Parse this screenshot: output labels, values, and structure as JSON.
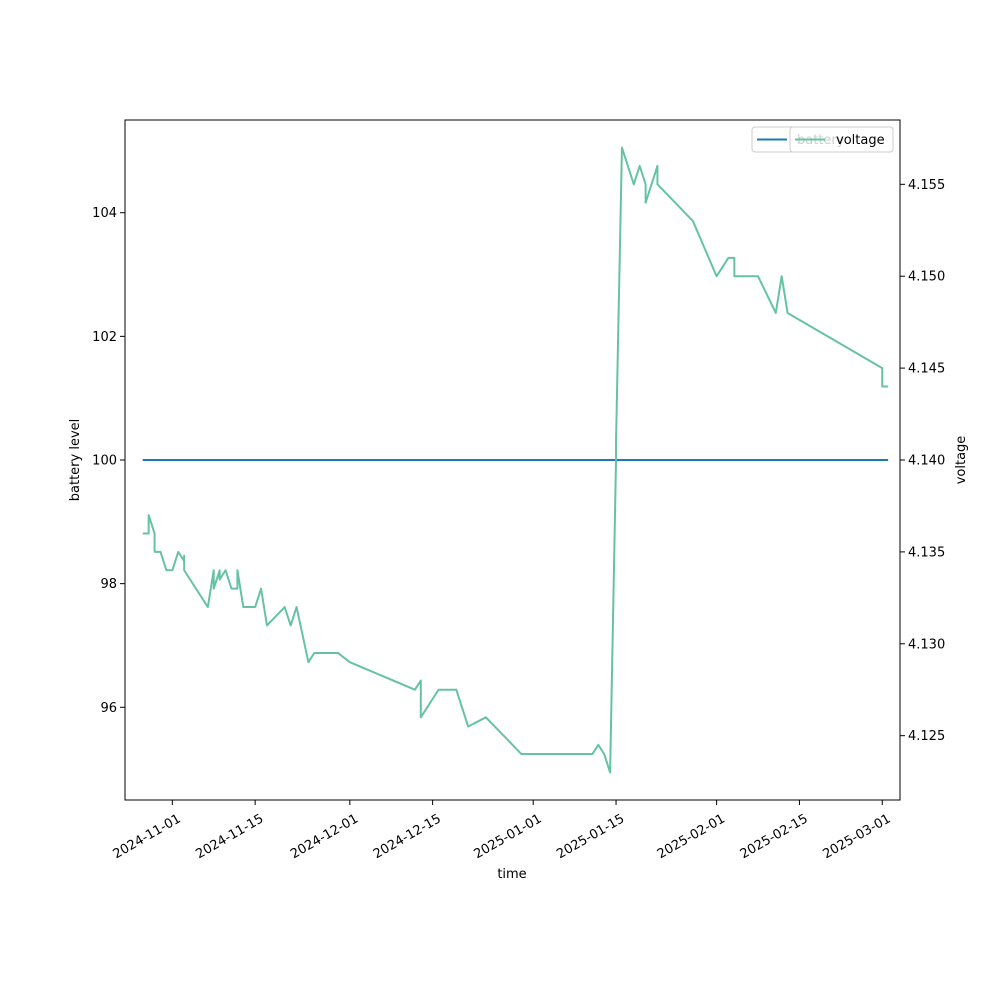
{
  "chart_data": {
    "type": "line",
    "xlabel": "time",
    "ylabel_left": "battery level",
    "ylabel_right": "voltage",
    "xlim": [
      "2024-10-24",
      "2025-03-04"
    ],
    "ylim_left": [
      94.5,
      105.5
    ],
    "ylim_right": [
      4.1215,
      4.1585
    ],
    "x_ticks": [
      "2024-11-01",
      "2024-11-15",
      "2024-12-01",
      "2024-12-15",
      "2025-01-01",
      "2025-01-15",
      "2025-02-01",
      "2025-02-15",
      "2025-03-01"
    ],
    "y_ticks_left": [
      96,
      98,
      100,
      102,
      104
    ],
    "y_ticks_right": [
      4.125,
      4.13,
      4.135,
      4.14,
      4.145,
      4.15,
      4.155
    ],
    "legend_left": {
      "label": "battery",
      "color": "#1f77b4",
      "placement": "upper right"
    },
    "legend_right": {
      "label": "voltage",
      "color": "#66c2a5",
      "placement": "upper right"
    },
    "series": [
      {
        "name": "battery",
        "axis": "left",
        "color": "#1f77b4",
        "points": [
          [
            "2024-10-27",
            100
          ],
          [
            "2025-03-02",
            100
          ]
        ]
      },
      {
        "name": "voltage",
        "axis": "right",
        "color": "#66c2a5",
        "points": [
          [
            "2024-10-27",
            4.136
          ],
          [
            "2024-10-28",
            4.136
          ],
          [
            "2024-10-28",
            4.137
          ],
          [
            "2024-10-29",
            4.136
          ],
          [
            "2024-10-29",
            4.135
          ],
          [
            "2024-10-30",
            4.135
          ],
          [
            "2024-10-31",
            4.134
          ],
          [
            "2024-11-01",
            4.134
          ],
          [
            "2024-11-02",
            4.135
          ],
          [
            "2024-11-03",
            4.1345
          ],
          [
            "2024-11-03",
            4.1348
          ],
          [
            "2024-11-03",
            4.134
          ],
          [
            "2024-11-07",
            4.132
          ],
          [
            "2024-11-08",
            4.134
          ],
          [
            "2024-11-08",
            4.133
          ],
          [
            "2024-11-09",
            4.134
          ],
          [
            "2024-11-09",
            4.1335
          ],
          [
            "2024-11-10",
            4.134
          ],
          [
            "2024-11-11",
            4.133
          ],
          [
            "2024-11-12",
            4.133
          ],
          [
            "2024-11-12",
            4.134
          ],
          [
            "2024-11-13",
            4.132
          ],
          [
            "2024-11-14",
            4.132
          ],
          [
            "2024-11-15",
            4.132
          ],
          [
            "2024-11-16",
            4.133
          ],
          [
            "2024-11-17",
            4.131
          ],
          [
            "2024-11-20",
            4.132
          ],
          [
            "2024-11-21",
            4.131
          ],
          [
            "2024-11-22",
            4.132
          ],
          [
            "2024-11-23",
            4.1305
          ],
          [
            "2024-11-24",
            4.129
          ],
          [
            "2024-11-25",
            4.1295
          ],
          [
            "2024-11-29",
            4.1295
          ],
          [
            "2024-12-01",
            4.129
          ],
          [
            "2024-12-12",
            4.1275
          ],
          [
            "2024-12-13",
            4.128
          ],
          [
            "2024-12-13",
            4.126
          ],
          [
            "2024-12-16",
            4.1275
          ],
          [
            "2024-12-19",
            4.1275
          ],
          [
            "2024-12-21",
            4.1255
          ],
          [
            "2024-12-24",
            4.126
          ],
          [
            "2024-12-30",
            4.124
          ],
          [
            "2025-01-11",
            4.124
          ],
          [
            "2025-01-12",
            4.1245
          ],
          [
            "2025-01-13",
            4.124
          ],
          [
            "2025-01-14",
            4.123
          ],
          [
            "2025-01-15",
            4.14
          ],
          [
            "2025-01-15",
            4.141
          ],
          [
            "2025-01-16",
            4.157
          ],
          [
            "2025-01-18",
            4.155
          ],
          [
            "2025-01-19",
            4.156
          ],
          [
            "2025-01-20",
            4.155
          ],
          [
            "2025-01-20",
            4.154
          ],
          [
            "2025-01-21",
            4.155
          ],
          [
            "2025-01-22",
            4.156
          ],
          [
            "2025-01-22",
            4.155
          ],
          [
            "2025-01-28",
            4.153
          ],
          [
            "2025-02-01",
            4.15
          ],
          [
            "2025-02-03",
            4.151
          ],
          [
            "2025-02-04",
            4.151
          ],
          [
            "2025-02-04",
            4.15
          ],
          [
            "2025-02-08",
            4.15
          ],
          [
            "2025-02-11",
            4.148
          ],
          [
            "2025-02-12",
            4.15
          ],
          [
            "2025-02-13",
            4.148
          ],
          [
            "2025-03-01",
            4.145
          ],
          [
            "2025-03-01",
            4.144
          ],
          [
            "2025-03-02",
            4.144
          ]
        ]
      }
    ]
  }
}
